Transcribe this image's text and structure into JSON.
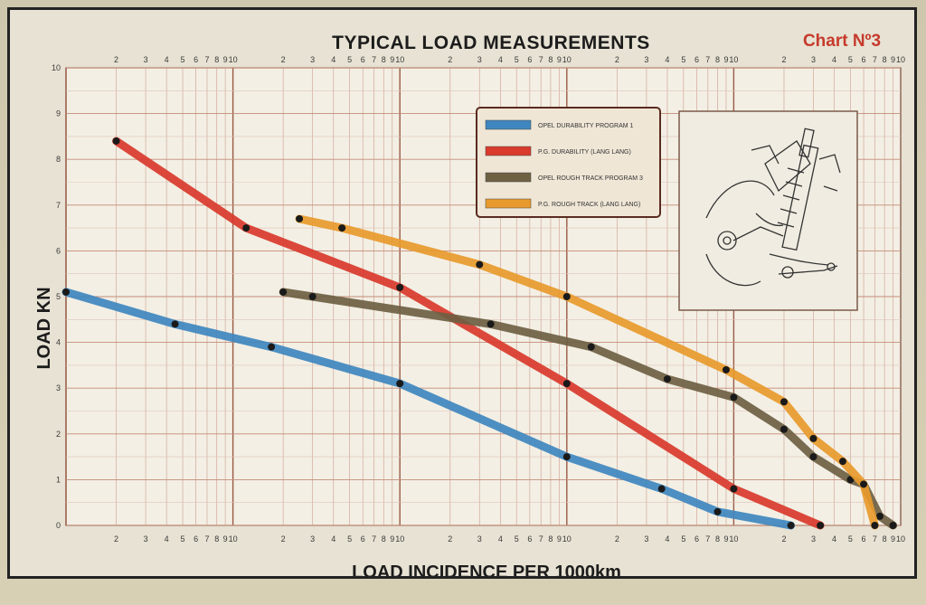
{
  "title": "TYPICAL LOAD MEASUREMENTS",
  "chart_label": "Chart Nº3",
  "chart_data": {
    "type": "line",
    "title": "TYPICAL LOAD MEASUREMENTS",
    "xlabel": "LOAD INCIDENCE PER 1000km",
    "ylabel": "LOAD   KN",
    "x_scale": "log",
    "xlim": [
      1,
      100000
    ],
    "ylim": [
      0,
      10
    ],
    "grid": true,
    "legend_position": "top-center",
    "x_decade_tick_labels": [
      "2",
      "3",
      "4",
      "5",
      "6",
      "7",
      "8",
      "9",
      "10"
    ],
    "y_tick_labels": [
      "0",
      "1",
      "2",
      "3",
      "4",
      "5",
      "6",
      "7",
      "8",
      "9",
      "10"
    ],
    "series": [
      {
        "name": "OPEL DURABILITY PROGRAM 1",
        "color": "#3f87bf",
        "x": [
          1,
          4.5,
          17,
          100,
          1000,
          3700,
          8000,
          22000
        ],
        "y": [
          5.1,
          4.4,
          3.9,
          3.1,
          1.5,
          0.8,
          0.3,
          0
        ]
      },
      {
        "name": "P.G. DURABILITY (LANG LANG)",
        "color": "#d93a2c",
        "x": [
          2,
          12,
          100,
          1000,
          10000,
          33000
        ],
        "y": [
          8.4,
          6.5,
          5.2,
          3.1,
          0.8,
          0
        ]
      },
      {
        "name": "OPEL ROUGH TRACK PROGRAM 3",
        "color": "#6e6043",
        "x": [
          20,
          30,
          350,
          1400,
          4000,
          10000,
          20000,
          30000,
          50000,
          60000,
          75000,
          90000
        ],
        "y": [
          5.1,
          5.0,
          4.4,
          3.9,
          3.2,
          2.8,
          2.1,
          1.5,
          1.0,
          0.9,
          0.2,
          0
        ]
      },
      {
        "name": "P.G. ROUGH TRACK (LANG LANG)",
        "color": "#e89a2c",
        "x": [
          25,
          45,
          300,
          1000,
          9000,
          20000,
          30000,
          45000,
          60000,
          70000
        ],
        "y": [
          6.7,
          6.5,
          5.7,
          5.0,
          3.4,
          2.7,
          1.9,
          1.4,
          0.9,
          0
        ]
      }
    ]
  }
}
